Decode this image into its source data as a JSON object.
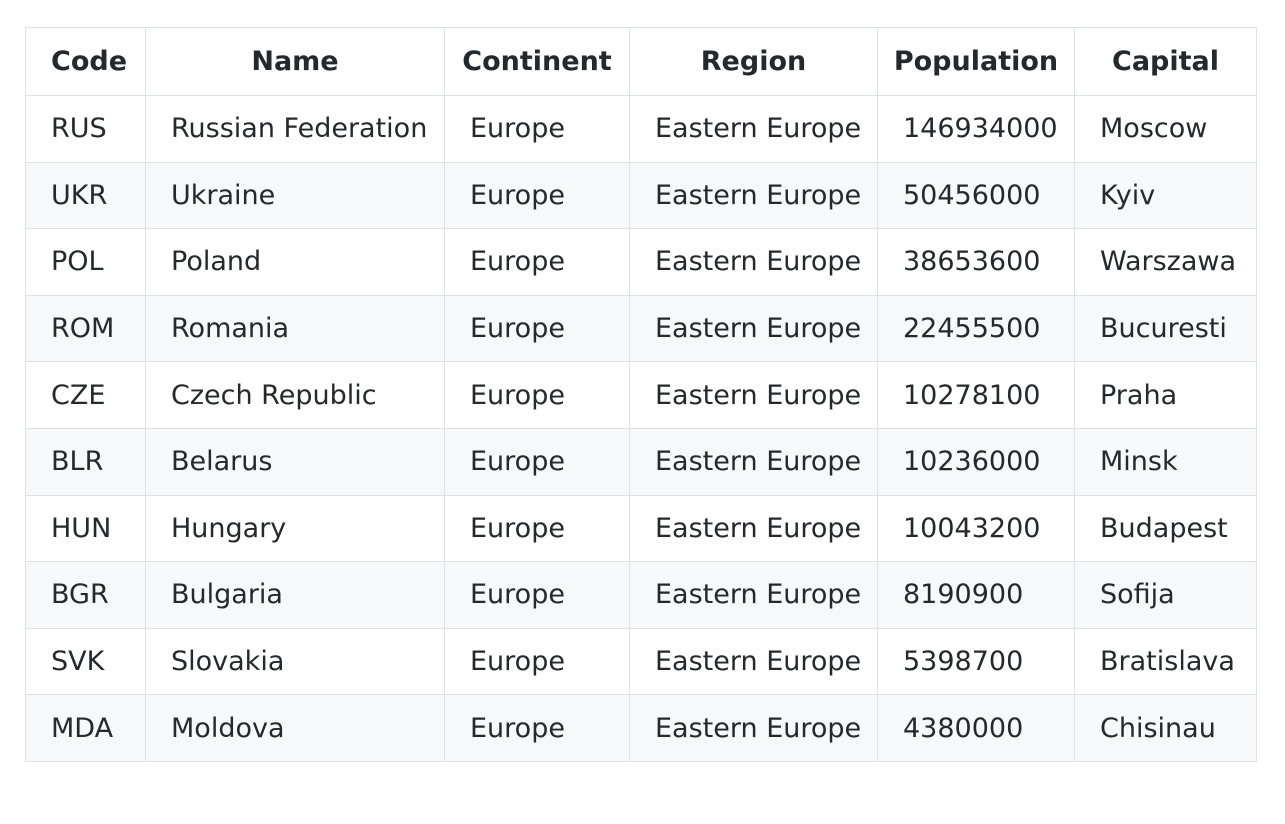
{
  "table": {
    "headers": [
      "Code",
      "Name",
      "Continent",
      "Region",
      "Population",
      "Capital"
    ],
    "rows": [
      [
        "RUS",
        "Russian Federation",
        "Europe",
        "Eastern Europe",
        "146934000",
        "Moscow"
      ],
      [
        "UKR",
        "Ukraine",
        "Europe",
        "Eastern Europe",
        "50456000",
        "Kyiv"
      ],
      [
        "POL",
        "Poland",
        "Europe",
        "Eastern Europe",
        "38653600",
        "Warszawa"
      ],
      [
        "ROM",
        "Romania",
        "Europe",
        "Eastern Europe",
        "22455500",
        "Bucuresti"
      ],
      [
        "CZE",
        "Czech Republic",
        "Europe",
        "Eastern Europe",
        "10278100",
        "Praha"
      ],
      [
        "BLR",
        "Belarus",
        "Europe",
        "Eastern Europe",
        "10236000",
        "Minsk"
      ],
      [
        "HUN",
        "Hungary",
        "Europe",
        "Eastern Europe",
        "10043200",
        "Budapest"
      ],
      [
        "BGR",
        "Bulgaria",
        "Europe",
        "Eastern Europe",
        "8190900",
        "Sofija"
      ],
      [
        "SVK",
        "Slovakia",
        "Europe",
        "Eastern Europe",
        "5398700",
        "Bratislava"
      ],
      [
        "MDA",
        "Moldova",
        "Europe",
        "Eastern Europe",
        "4380000",
        "Chisinau"
      ]
    ]
  },
  "colors": {
    "border": "#dfe2e5",
    "stripe": "#f6f8fa",
    "text": "#24292e"
  }
}
